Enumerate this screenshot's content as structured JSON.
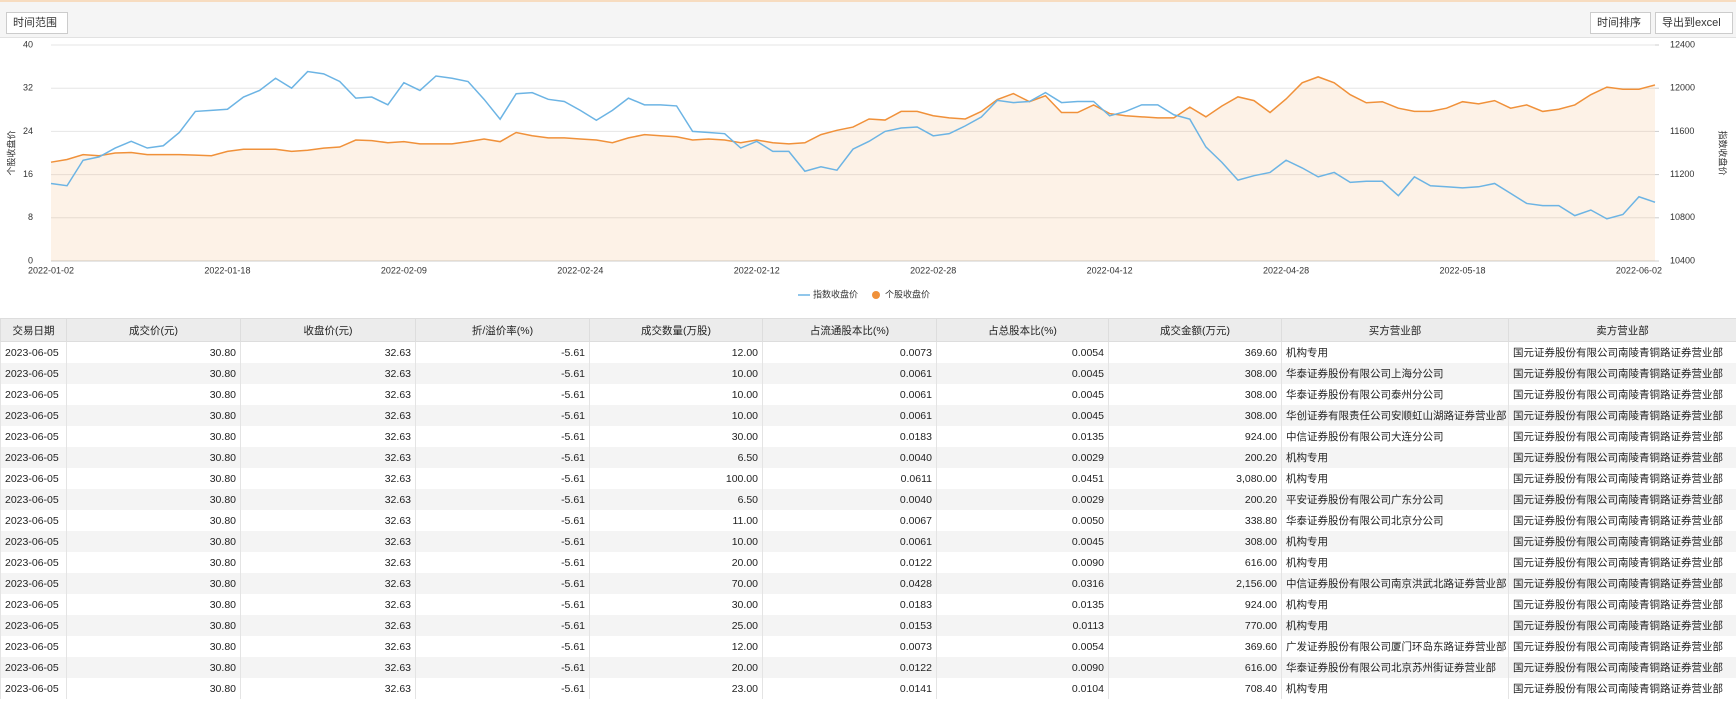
{
  "toolbar": {
    "range_button": "时间范围",
    "sort_button": "时间排序",
    "export_button": "导出到excel"
  },
  "chart_data": {
    "type": "line",
    "ylabel": "个股收盘价",
    "y2label": "指数收盘价",
    "categories": [
      "2022-01-02",
      null,
      null,
      null,
      null,
      null,
      null,
      null,
      null,
      null,
      null,
      "2022-01-18",
      null,
      null,
      null,
      null,
      null,
      null,
      null,
      null,
      null,
      null,
      "2022-02-09",
      null,
      null,
      null,
      null,
      null,
      null,
      null,
      null,
      null,
      null,
      "2022-02-24",
      null,
      null,
      null,
      null,
      null,
      null,
      null,
      null,
      null,
      null,
      "2022-02-12",
      null,
      null,
      null,
      null,
      null,
      null,
      null,
      null,
      null,
      null,
      "2022-02-28",
      null,
      null,
      null,
      null,
      null,
      null,
      null,
      null,
      null,
      null,
      "2022-04-12",
      null,
      null,
      null,
      null,
      null,
      null,
      null,
      null,
      null,
      null,
      "2022-04-28",
      null,
      null,
      null,
      null,
      null,
      null,
      null,
      null,
      null,
      null,
      "2022-05-18",
      null,
      null,
      null,
      null,
      null,
      null,
      null,
      null,
      null,
      null,
      "2022-06-02",
      null
    ],
    "series": [
      {
        "name": "指数收盘价",
        "color": "#6cb4e4",
        "axis": "y2",
        "values": [
          11118,
          11097,
          11333,
          11364,
          11446,
          11508,
          11446,
          11467,
          11590,
          11785,
          11795,
          11805,
          11918,
          11979,
          12092,
          12000,
          12154,
          12133,
          12062,
          11908,
          11918,
          11846,
          12051,
          11979,
          12113,
          12092,
          12062,
          11897,
          11713,
          11949,
          11959,
          11897,
          11877,
          11795,
          11703,
          11795,
          11908,
          11846,
          11846,
          11836,
          11600,
          11590,
          11579,
          11446,
          11508,
          11415,
          11415,
          11231,
          11272,
          11241,
          11436,
          11508,
          11600,
          11631,
          11641,
          11559,
          11579,
          11651,
          11733,
          11887,
          11867,
          11877,
          11959,
          11867,
          11877,
          11877,
          11744,
          11785,
          11846,
          11846,
          11754,
          11713,
          11456,
          11313,
          11149,
          11190,
          11220,
          11333,
          11262,
          11179,
          11220,
          11128,
          11138,
          11138,
          11005,
          11179,
          11097,
          11087,
          11077,
          11087,
          11118,
          11026,
          10933,
          10913,
          10913,
          10820,
          10872,
          10790,
          10831,
          10995,
          10944
        ]
      },
      {
        "name": "个股收盘价",
        "color": "#f0913a",
        "area": true,
        "values": [
          18.3,
          18.8,
          19.7,
          19.5,
          20.0,
          20.1,
          19.7,
          19.7,
          19.7,
          19.6,
          19.5,
          20.3,
          20.7,
          20.7,
          20.7,
          20.3,
          20.5,
          20.9,
          21.1,
          22.4,
          22.3,
          21.9,
          22.1,
          21.7,
          21.7,
          21.7,
          22.1,
          22.6,
          22.1,
          23.8,
          23.2,
          22.8,
          22.8,
          22.6,
          22.4,
          21.9,
          22.8,
          23.4,
          23.2,
          23.0,
          22.4,
          22.6,
          22.4,
          21.9,
          22.4,
          21.9,
          21.7,
          21.9,
          23.4,
          24.2,
          24.8,
          26.3,
          26.1,
          27.7,
          27.7,
          26.9,
          26.5,
          26.3,
          27.7,
          29.9,
          31.0,
          29.5,
          30.6,
          27.5,
          27.5,
          28.9,
          27.3,
          26.9,
          26.7,
          26.5,
          26.5,
          28.5,
          26.7,
          28.7,
          30.4,
          29.7,
          27.5,
          30.0,
          33.0,
          34.1,
          33.0,
          30.8,
          29.3,
          29.5,
          28.3,
          27.7,
          27.7,
          28.3,
          29.5,
          29.1,
          29.7,
          28.3,
          28.9,
          27.7,
          28.1,
          28.9,
          30.8,
          32.2,
          31.8,
          31.8,
          32.6
        ]
      }
    ],
    "ylim": [
      0,
      40
    ],
    "yticks": [
      0,
      8,
      16,
      24,
      32,
      40
    ],
    "y2lim": [
      10400,
      12400
    ],
    "y2ticks": [
      10400,
      10800,
      11200,
      11600,
      12000,
      12400
    ],
    "grid": true,
    "legend": "bottom"
  },
  "table": {
    "columns": [
      "交易日期",
      "成交价(元)",
      "收盘价(元)",
      "折/溢价率(%)",
      "成交数量(万股)",
      "占流通股本比(%)",
      "占总股本比(%)",
      "成交金额(万元)",
      "买方营业部",
      "卖方营业部"
    ],
    "rows": [
      [
        "2023-06-05",
        "30.80",
        "32.63",
        "-5.61",
        "12.00",
        "0.0073",
        "0.0054",
        "369.60",
        "机构专用",
        "国元证券股份有限公司南陵青铜路证券营业部"
      ],
      [
        "2023-06-05",
        "30.80",
        "32.63",
        "-5.61",
        "10.00",
        "0.0061",
        "0.0045",
        "308.00",
        "华泰证券股份有限公司上海分公司",
        "国元证券股份有限公司南陵青铜路证券营业部"
      ],
      [
        "2023-06-05",
        "30.80",
        "32.63",
        "-5.61",
        "10.00",
        "0.0061",
        "0.0045",
        "308.00",
        "华泰证券股份有限公司泰州分公司",
        "国元证券股份有限公司南陵青铜路证券营业部"
      ],
      [
        "2023-06-05",
        "30.80",
        "32.63",
        "-5.61",
        "10.00",
        "0.0061",
        "0.0045",
        "308.00",
        "华创证券有限责任公司安顺虹山湖路证券营业部",
        "国元证券股份有限公司南陵青铜路证券营业部"
      ],
      [
        "2023-06-05",
        "30.80",
        "32.63",
        "-5.61",
        "30.00",
        "0.0183",
        "0.0135",
        "924.00",
        "中信证券股份有限公司大连分公司",
        "国元证券股份有限公司南陵青铜路证券营业部"
      ],
      [
        "2023-06-05",
        "30.80",
        "32.63",
        "-5.61",
        "6.50",
        "0.0040",
        "0.0029",
        "200.20",
        "机构专用",
        "国元证券股份有限公司南陵青铜路证券营业部"
      ],
      [
        "2023-06-05",
        "30.80",
        "32.63",
        "-5.61",
        "100.00",
        "0.0611",
        "0.0451",
        "3,080.00",
        "机构专用",
        "国元证券股份有限公司南陵青铜路证券营业部"
      ],
      [
        "2023-06-05",
        "30.80",
        "32.63",
        "-5.61",
        "6.50",
        "0.0040",
        "0.0029",
        "200.20",
        "平安证券股份有限公司广东分公司",
        "国元证券股份有限公司南陵青铜路证券营业部"
      ],
      [
        "2023-06-05",
        "30.80",
        "32.63",
        "-5.61",
        "11.00",
        "0.0067",
        "0.0050",
        "338.80",
        "华泰证券股份有限公司北京分公司",
        "国元证券股份有限公司南陵青铜路证券营业部"
      ],
      [
        "2023-06-05",
        "30.80",
        "32.63",
        "-5.61",
        "10.00",
        "0.0061",
        "0.0045",
        "308.00",
        "机构专用",
        "国元证券股份有限公司南陵青铜路证券营业部"
      ],
      [
        "2023-06-05",
        "30.80",
        "32.63",
        "-5.61",
        "20.00",
        "0.0122",
        "0.0090",
        "616.00",
        "机构专用",
        "国元证券股份有限公司南陵青铜路证券营业部"
      ],
      [
        "2023-06-05",
        "30.80",
        "32.63",
        "-5.61",
        "70.00",
        "0.0428",
        "0.0316",
        "2,156.00",
        "中信证券股份有限公司南京洪武北路证券营业部",
        "国元证券股份有限公司南陵青铜路证券营业部"
      ],
      [
        "2023-06-05",
        "30.80",
        "32.63",
        "-5.61",
        "30.00",
        "0.0183",
        "0.0135",
        "924.00",
        "机构专用",
        "国元证券股份有限公司南陵青铜路证券营业部"
      ],
      [
        "2023-06-05",
        "30.80",
        "32.63",
        "-5.61",
        "25.00",
        "0.0153",
        "0.0113",
        "770.00",
        "机构专用",
        "国元证券股份有限公司南陵青铜路证券营业部"
      ],
      [
        "2023-06-05",
        "30.80",
        "32.63",
        "-5.61",
        "12.00",
        "0.0073",
        "0.0054",
        "369.60",
        "广发证券股份有限公司厦门环岛东路证券营业部",
        "国元证券股份有限公司南陵青铜路证券营业部"
      ],
      [
        "2023-06-05",
        "30.80",
        "32.63",
        "-5.61",
        "20.00",
        "0.0122",
        "0.0090",
        "616.00",
        "华泰证券股份有限公司北京苏州街证券营业部",
        "国元证券股份有限公司南陵青铜路证券营业部"
      ],
      [
        "2023-06-05",
        "30.80",
        "32.63",
        "-5.61",
        "23.00",
        "0.0141",
        "0.0104",
        "708.40",
        "机构专用",
        "国元证券股份有限公司南陵青铜路证券营业部"
      ]
    ]
  }
}
